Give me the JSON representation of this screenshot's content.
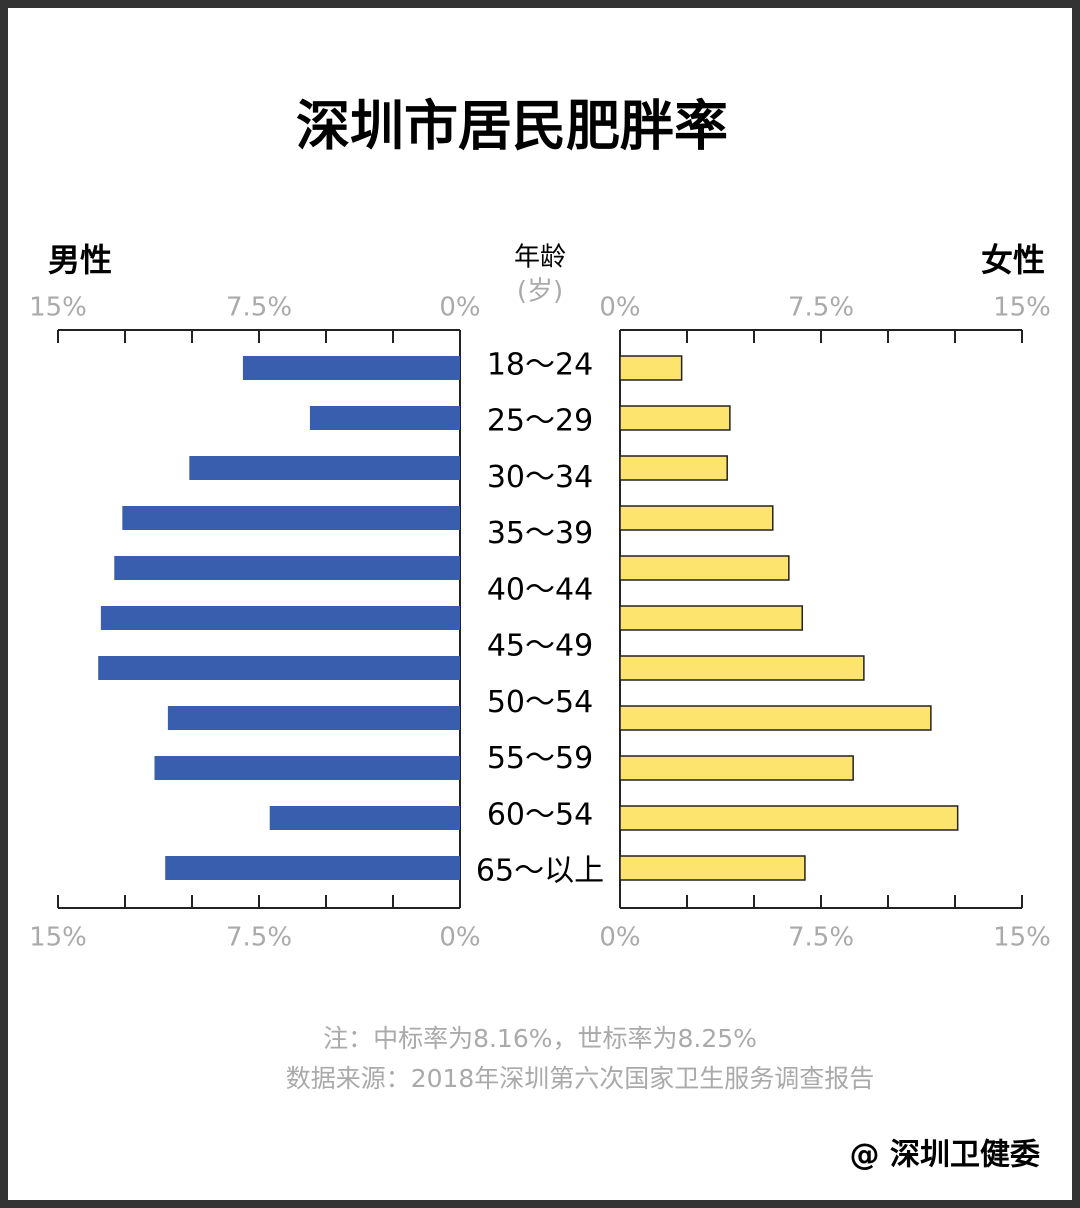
{
  "chart_data": {
    "type": "pyramid",
    "title": "深圳市居民肥胖率",
    "left_label": "男性",
    "right_label": "女性",
    "center_label": "年龄",
    "center_sublabel": "(岁)",
    "categories": [
      "18～24",
      "25～29",
      "30～34",
      "35～39",
      "40～44",
      "45～49",
      null,
      "50～54",
      "55～59",
      "60～54",
      "65～以上"
    ],
    "series": [
      {
        "name": "男性",
        "color": "#3a5eae",
        "values": [
          8.1,
          5.6,
          10.1,
          12.6,
          12.9,
          13.4,
          13.5,
          10.9,
          11.4,
          7.1,
          11.0
        ]
      },
      {
        "name": "女性",
        "color": "#fde46f",
        "values": [
          2.3,
          4.1,
          4.0,
          5.7,
          6.3,
          6.8,
          9.1,
          11.6,
          8.7,
          12.6,
          6.9
        ]
      }
    ],
    "xlim": [
      0,
      15
    ],
    "xticks": [
      {
        "value": 0,
        "label": "0%"
      },
      {
        "value": 7.5,
        "label": "7.5%"
      },
      {
        "value": 15,
        "label": "15%"
      }
    ],
    "minor_xticks": [
      2.5,
      5,
      10,
      12.5
    ],
    "notes": [
      "注：中标率为8.16%，世标率为8.25%",
      "数据来源：2018年深圳第六次国家卫生服务调查报告"
    ],
    "credit": "@ 深圳卫健委"
  }
}
